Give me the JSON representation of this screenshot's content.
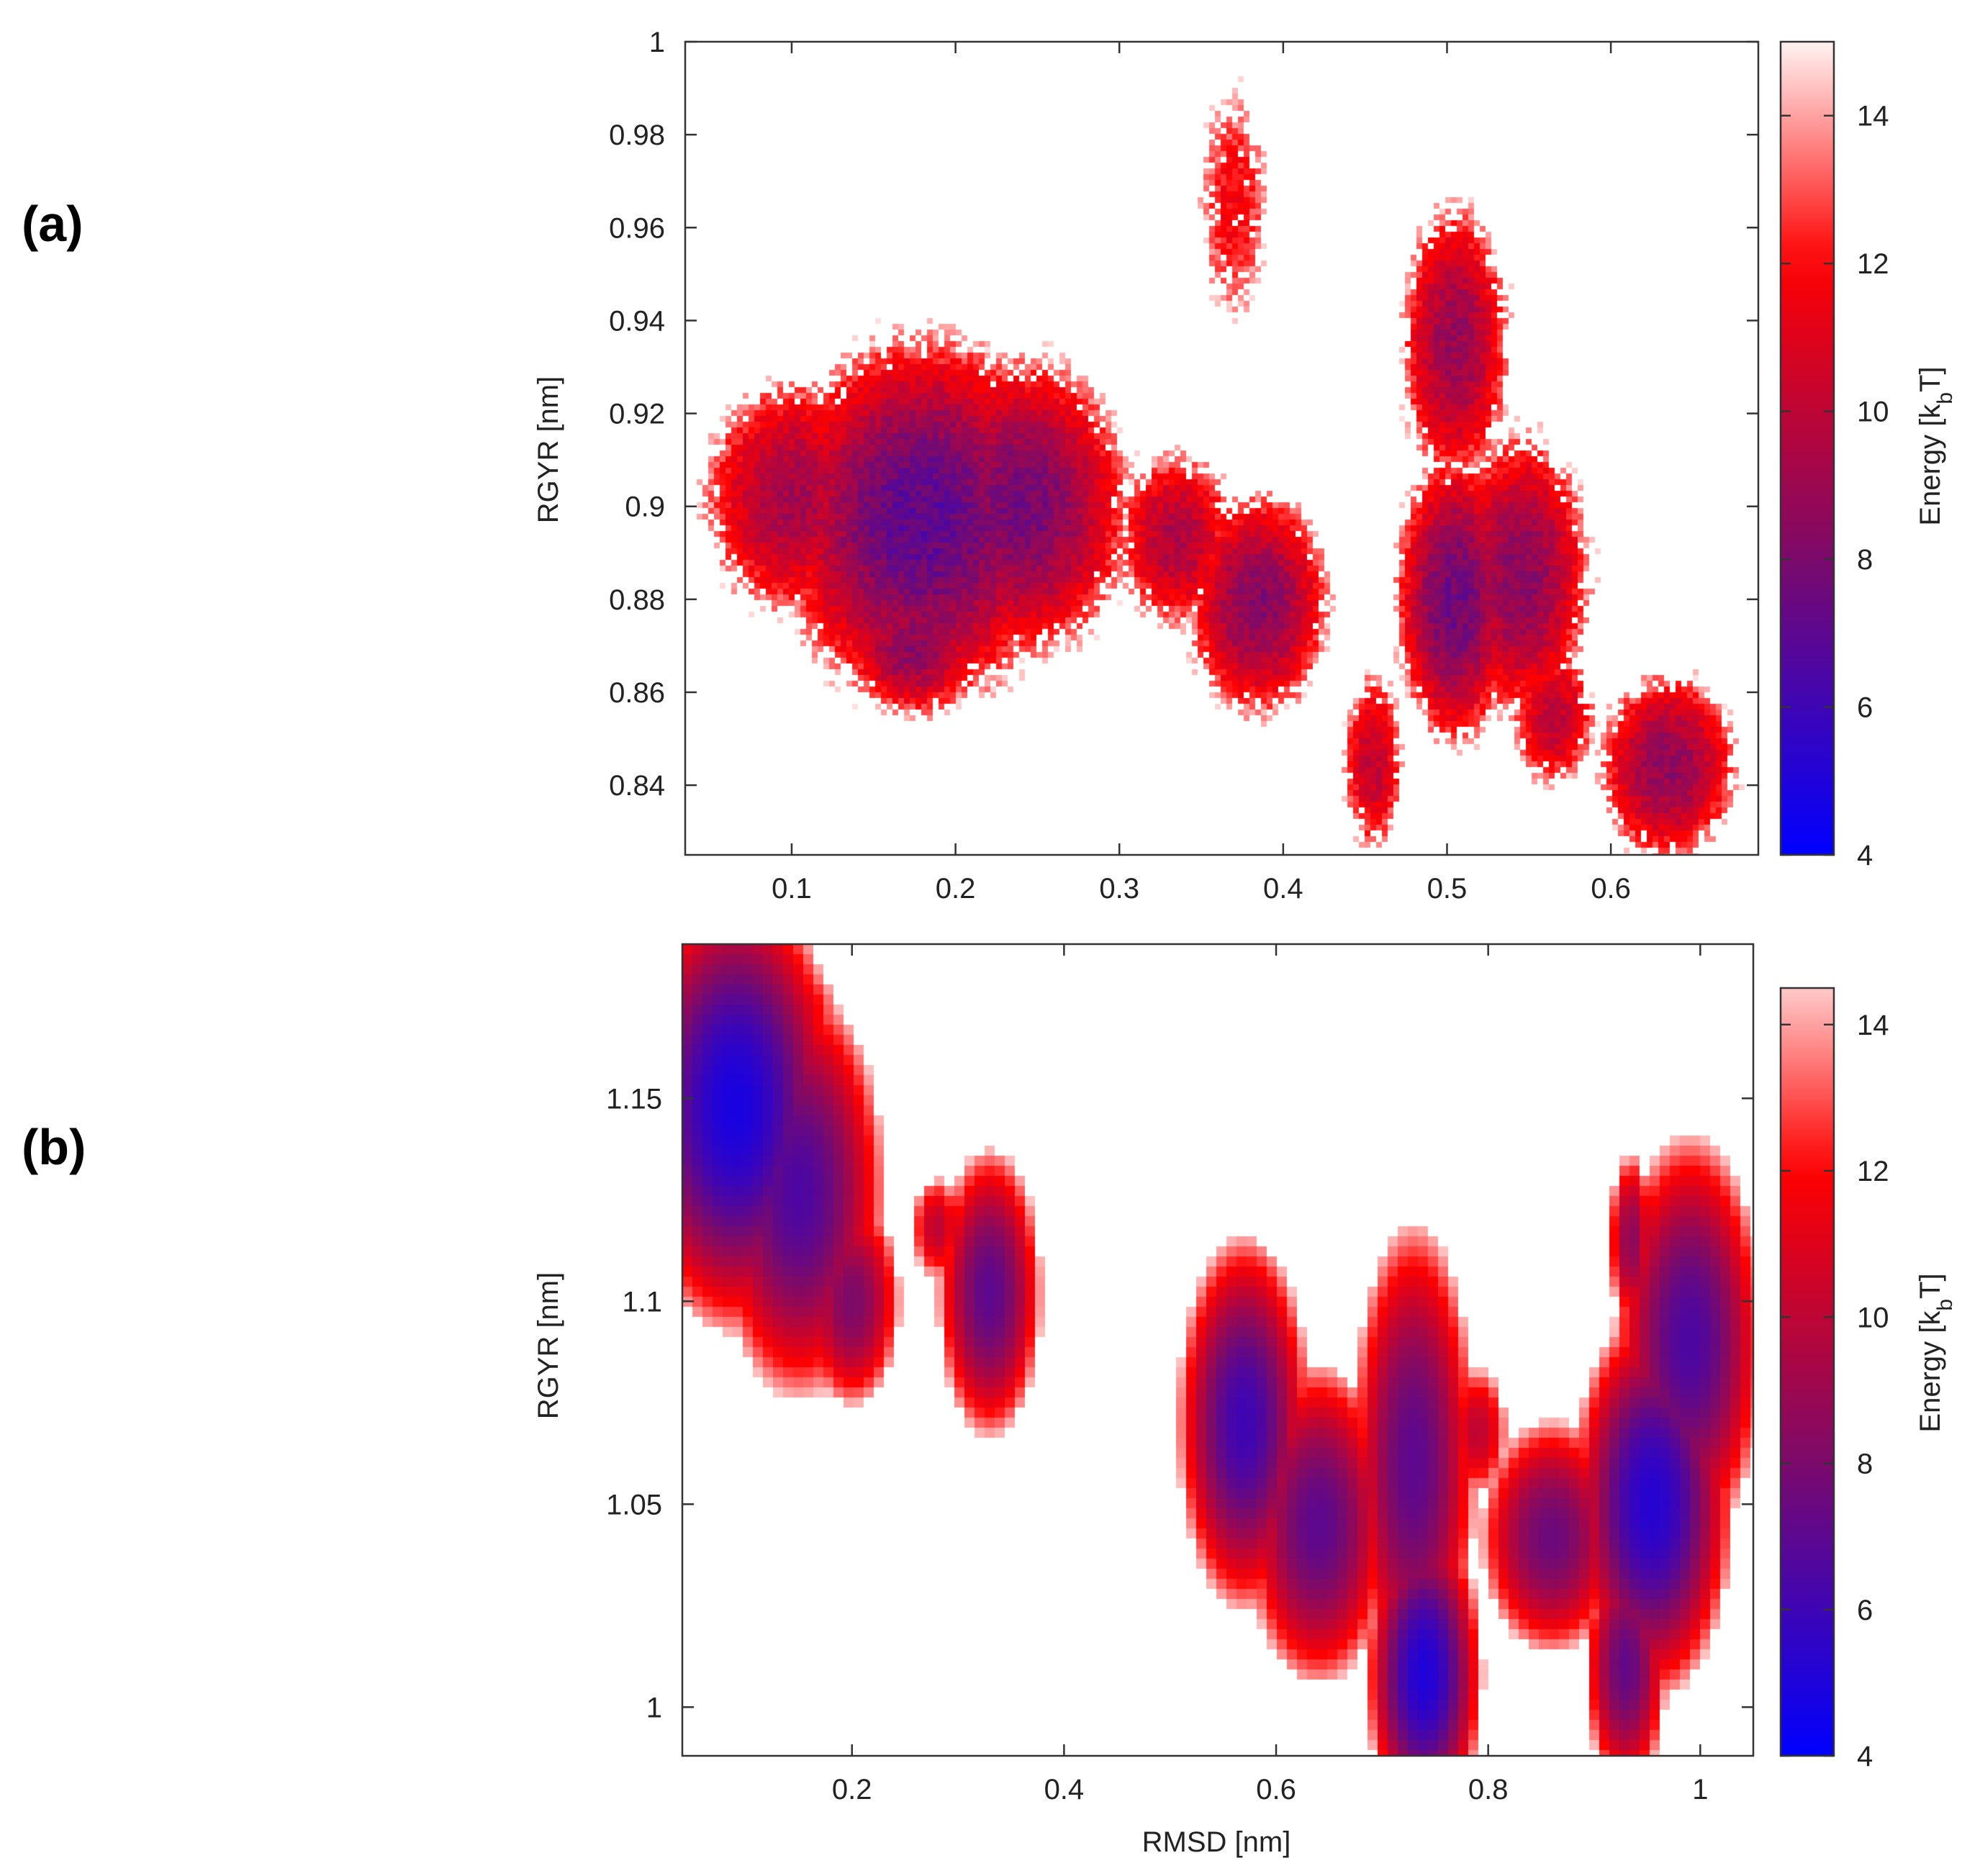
{
  "colors": {
    "low": "#0000ff",
    "mid": "#7b0a6a",
    "high_red": "#ff0000",
    "top": "#fff2f2",
    "axis": "#333333"
  },
  "chart_data": [
    {
      "panel_label": "(a)",
      "type": "heatmap",
      "title": "",
      "xlabel": "",
      "ylabel": "RGYR [nm]",
      "colorbar_label": "Energy [k",
      "colorbar_sub": "b",
      "colorbar_suffix": "T]",
      "xlim": [
        0.035,
        0.69
      ],
      "ylim": [
        0.825,
        1.0
      ],
      "x_ticks": [
        0.1,
        0.2,
        0.3,
        0.4,
        0.5,
        0.6
      ],
      "x_tick_labels": [
        "0.1",
        "0.2",
        "0.3",
        "0.4",
        "0.5",
        "0.6"
      ],
      "y_ticks": [
        0.84,
        0.86,
        0.88,
        0.9,
        0.92,
        0.94,
        0.96,
        0.98,
        1.0
      ],
      "y_tick_labels": [
        "0.84",
        "0.86",
        "0.88",
        "0.9",
        "0.92",
        "0.94",
        "0.96",
        "0.98",
        "1"
      ],
      "colorbar_range": [
        4,
        15
      ],
      "colorbar_ticks": [
        4,
        6,
        8,
        10,
        12,
        14
      ],
      "colorbar_tick_labels": [
        "4",
        "6",
        "8",
        "10",
        "12",
        "14"
      ],
      "basins": [
        {
          "x": 0.18,
          "y": 0.897,
          "sx": 0.048,
          "sy": 0.021,
          "e_min": 7.0
        },
        {
          "x": 0.1,
          "y": 0.902,
          "sx": 0.033,
          "sy": 0.016,
          "e_min": 9.2
        },
        {
          "x": 0.24,
          "y": 0.9,
          "sx": 0.038,
          "sy": 0.018,
          "e_min": 7.8
        },
        {
          "x": 0.175,
          "y": 0.87,
          "sx": 0.025,
          "sy": 0.009,
          "e_min": 8.5
        },
        {
          "x": 0.335,
          "y": 0.893,
          "sx": 0.023,
          "sy": 0.012,
          "e_min": 9.5
        },
        {
          "x": 0.385,
          "y": 0.879,
          "sx": 0.025,
          "sy": 0.014,
          "e_min": 8.3
        },
        {
          "x": 0.37,
          "y": 0.965,
          "sx": 0.017,
          "sy": 0.02,
          "e_min": 11.8
        },
        {
          "x": 0.455,
          "y": 0.845,
          "sx": 0.012,
          "sy": 0.013,
          "e_min": 10.0
        },
        {
          "x": 0.505,
          "y": 0.935,
          "sx": 0.02,
          "sy": 0.018,
          "e_min": 8.8
        },
        {
          "x": 0.505,
          "y": 0.88,
          "sx": 0.02,
          "sy": 0.017,
          "e_min": 7.5
        },
        {
          "x": 0.545,
          "y": 0.885,
          "sx": 0.025,
          "sy": 0.018,
          "e_min": 8.4
        },
        {
          "x": 0.565,
          "y": 0.855,
          "sx": 0.017,
          "sy": 0.01,
          "e_min": 10.0
        },
        {
          "x": 0.635,
          "y": 0.844,
          "sx": 0.025,
          "sy": 0.012,
          "e_min": 8.6
        }
      ]
    },
    {
      "panel_label": "(b)",
      "type": "heatmap",
      "title": "",
      "xlabel": "RMSD [nm]",
      "ylabel": "RGYR [nm]",
      "colorbar_label": "Energy [k",
      "colorbar_sub": "b",
      "colorbar_suffix": "T]",
      "xlim": [
        0.04,
        1.05
      ],
      "ylim": [
        0.988,
        1.188
      ],
      "x_ticks": [
        0.2,
        0.4,
        0.6,
        0.8,
        1.0
      ],
      "x_tick_labels": [
        "0.2",
        "0.4",
        "0.6",
        "0.8",
        "1"
      ],
      "y_ticks": [
        1.0,
        1.05,
        1.1,
        1.15
      ],
      "y_tick_labels": [
        "1",
        "1.05",
        "1.1",
        "1.15"
      ],
      "colorbar_range": [
        4,
        14.5
      ],
      "colorbar_ticks": [
        4,
        6,
        8,
        10,
        12,
        14
      ],
      "colorbar_tick_labels": [
        "4",
        "6",
        "8",
        "10",
        "12",
        "14"
      ],
      "basins": [
        {
          "x": 0.09,
          "y": 1.148,
          "sx": 0.045,
          "sy": 0.025,
          "e_min": 4.8
        },
        {
          "x": 0.15,
          "y": 1.127,
          "sx": 0.04,
          "sy": 0.025,
          "e_min": 6.5
        },
        {
          "x": 0.2,
          "y": 1.1,
          "sx": 0.025,
          "sy": 0.014,
          "e_min": 8.0
        },
        {
          "x": 0.13,
          "y": 1.17,
          "sx": 0.035,
          "sy": 0.01,
          "e_min": 9.5
        },
        {
          "x": 0.33,
          "y": 1.102,
          "sx": 0.025,
          "sy": 0.018,
          "e_min": 7.0
        },
        {
          "x": 0.28,
          "y": 1.118,
          "sx": 0.015,
          "sy": 0.008,
          "e_min": 10.0
        },
        {
          "x": 0.57,
          "y": 1.07,
          "sx": 0.03,
          "sy": 0.022,
          "e_min": 6.0
        },
        {
          "x": 0.64,
          "y": 1.045,
          "sx": 0.035,
          "sy": 0.02,
          "e_min": 7.0
        },
        {
          "x": 0.73,
          "y": 1.06,
          "sx": 0.03,
          "sy": 0.03,
          "e_min": 7.0
        },
        {
          "x": 0.74,
          "y": 1.008,
          "sx": 0.025,
          "sy": 0.018,
          "e_min": 5.0
        },
        {
          "x": 0.79,
          "y": 1.068,
          "sx": 0.018,
          "sy": 0.01,
          "e_min": 10.0
        },
        {
          "x": 0.86,
          "y": 1.042,
          "sx": 0.035,
          "sy": 0.015,
          "e_min": 7.5
        },
        {
          "x": 0.93,
          "y": 1.01,
          "sx": 0.02,
          "sy": 0.016,
          "e_min": 7.2
        },
        {
          "x": 0.955,
          "y": 1.05,
          "sx": 0.035,
          "sy": 0.022,
          "e_min": 5.2
        },
        {
          "x": 0.99,
          "y": 1.09,
          "sx": 0.035,
          "sy": 0.025,
          "e_min": 6.5
        },
        {
          "x": 0.935,
          "y": 1.115,
          "sx": 0.012,
          "sy": 0.012,
          "e_min": 8.5
        }
      ]
    }
  ]
}
